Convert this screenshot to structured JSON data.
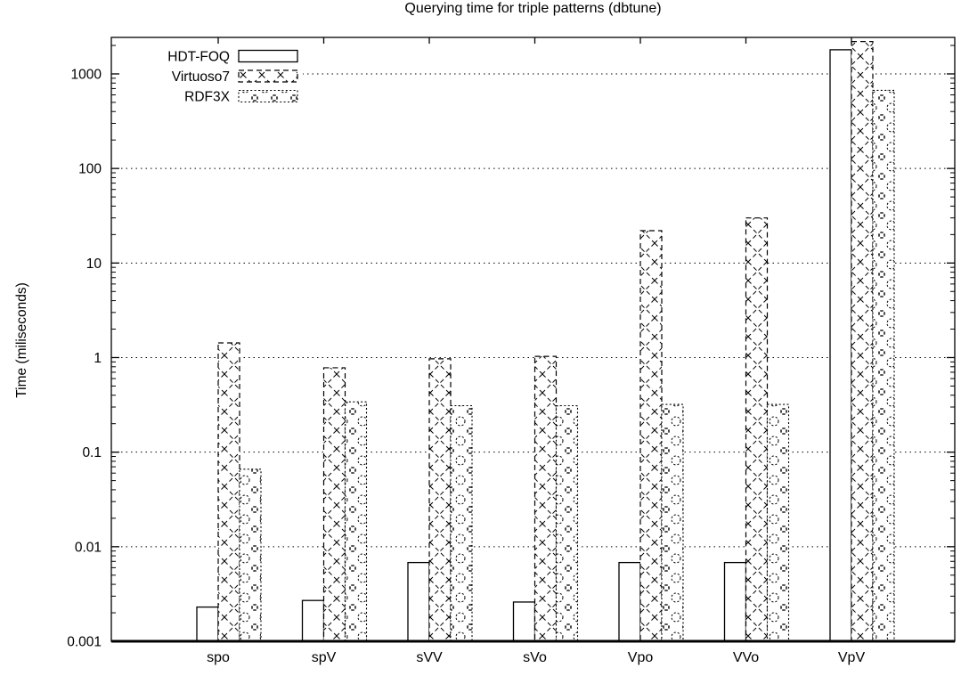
{
  "page": {
    "background": "#ffffff",
    "foreground": "#000000"
  },
  "title": "Querying time for triple patterns (dbtune)",
  "ylabel": "Time (miliseconds)",
  "chart_data": {
    "type": "bar",
    "title": "Querying time for triple patterns (dbtune)",
    "xlabel": "",
    "ylabel": "Time (miliseconds)",
    "y_scale": "log10",
    "ylim": [
      0.001,
      2400
    ],
    "yticks": [
      1000,
      100,
      10,
      1,
      0.1,
      0.01,
      0.001
    ],
    "ytick_labels": [
      "1000",
      "100",
      "10",
      "1",
      "0.1",
      "0.01",
      "0.001"
    ],
    "grid": "horizontal dotted lines at each decade",
    "legend_position": "top-left",
    "categories": [
      "spo",
      "spV",
      "sVV",
      "sVo",
      "Vpo",
      "VVo",
      "VpV"
    ],
    "series": [
      {
        "name": "HDT-FOQ",
        "fill_style": "plain-white-solid-outline",
        "values": [
          0.0023,
          0.0027,
          0.0068,
          0.0026,
          0.0068,
          0.0068,
          1800
        ]
      },
      {
        "name": "Virtuoso7",
        "fill_style": "dashed-crosshatch",
        "values": [
          1.43,
          0.78,
          0.97,
          1.03,
          22,
          30,
          2200
        ]
      },
      {
        "name": "RDF3X",
        "fill_style": "dotted-rosette",
        "values": [
          0.066,
          0.34,
          0.31,
          0.31,
          0.32,
          0.32,
          670
        ]
      }
    ]
  }
}
